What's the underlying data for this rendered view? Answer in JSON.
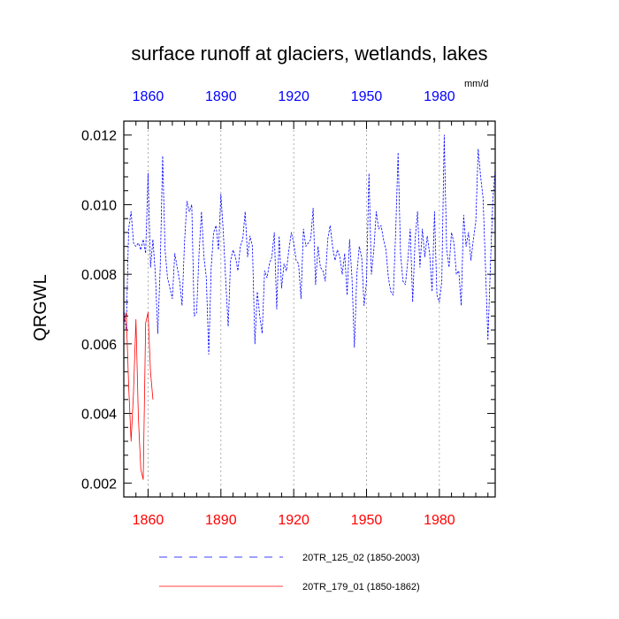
{
  "chart_data": {
    "type": "line",
    "title": "surface runoff at glaciers, wetlands, lakes",
    "xlabel": "",
    "ylabel": "QRGWL",
    "units": "mm/d",
    "xlim": [
      1850,
      2003
    ],
    "ylim": [
      0.0016,
      0.0124
    ],
    "x_ticks": [
      "1860",
      "1890",
      "1920",
      "1950",
      "1980"
    ],
    "x_tick_values": [
      1860,
      1890,
      1920,
      1950,
      1980
    ],
    "y_ticks": [
      "0.002",
      "0.004",
      "0.006",
      "0.008",
      "0.010",
      "0.012"
    ],
    "y_tick_values": [
      0.002,
      0.004,
      0.006,
      0.008,
      0.01,
      0.012
    ],
    "grid": "vertical-dotted",
    "legend_position": "bottom",
    "colors": {
      "series1": "#0000ff",
      "series2": "#ff0000",
      "top_ticks": "#0000ff",
      "bottom_ticks": "#ff0000"
    },
    "series": [
      {
        "name": "20TR_125_02 (1850-2003)",
        "style": "dashed",
        "color": "#0000ff",
        "start_year": 1850,
        "values": [
          0.007,
          0.0064,
          0.0093,
          0.0098,
          0.0089,
          0.0088,
          0.0089,
          0.0087,
          0.009,
          0.0086,
          0.0109,
          0.0082,
          0.009,
          0.008,
          0.0063,
          0.0082,
          0.0114,
          0.0087,
          0.0079,
          0.0076,
          0.0073,
          0.0086,
          0.0082,
          0.0078,
          0.0071,
          0.0089,
          0.0101,
          0.0098,
          0.01,
          0.0068,
          0.0069,
          0.0086,
          0.0098,
          0.0085,
          0.0079,
          0.0057,
          0.0082,
          0.0092,
          0.0094,
          0.0087,
          0.0103,
          0.0092,
          0.0078,
          0.0065,
          0.0084,
          0.0087,
          0.0085,
          0.0081,
          0.0088,
          0.009,
          0.0098,
          0.0085,
          0.0091,
          0.0088,
          0.006,
          0.0075,
          0.0068,
          0.0063,
          0.0081,
          0.0079,
          0.0083,
          0.0085,
          0.0092,
          0.007,
          0.0091,
          0.0076,
          0.0083,
          0.0081,
          0.0087,
          0.0092,
          0.0089,
          0.0084,
          0.0083,
          0.0073,
          0.0093,
          0.0088,
          0.0089,
          0.009,
          0.0099,
          0.0077,
          0.0088,
          0.0082,
          0.0081,
          0.0078,
          0.009,
          0.0094,
          0.0088,
          0.0084,
          0.0087,
          0.0085,
          0.008,
          0.0086,
          0.0074,
          0.009,
          0.0079,
          0.0059,
          0.008,
          0.0088,
          0.0085,
          0.0071,
          0.0078,
          0.0109,
          0.008,
          0.0087,
          0.0098,
          0.0093,
          0.0094,
          0.009,
          0.0087,
          0.0079,
          0.0075,
          0.0074,
          0.0092,
          0.0115,
          0.0086,
          0.0078,
          0.0077,
          0.0084,
          0.0093,
          0.0072,
          0.009,
          0.0098,
          0.0082,
          0.0093,
          0.0085,
          0.0091,
          0.0086,
          0.0075,
          0.0098,
          0.0074,
          0.0072,
          0.0078,
          0.012,
          0.0087,
          0.0082,
          0.0092,
          0.0089,
          0.008,
          0.0081,
          0.0071,
          0.0097,
          0.0088,
          0.0092,
          0.0084,
          0.009,
          0.0095,
          0.0116,
          0.0108,
          0.0102,
          0.0082,
          0.0061,
          0.0082,
          0.0101,
          0.011
        ]
      },
      {
        "name": "20TR_179_01 (1850-1862)",
        "style": "solid",
        "color": "#ff0000",
        "start_year": 1850,
        "values": [
          0.0066,
          0.0069,
          0.0048,
          0.0032,
          0.0046,
          0.0067,
          0.0039,
          0.0024,
          0.0021,
          0.0066,
          0.0069,
          0.0052,
          0.0044
        ]
      }
    ]
  }
}
